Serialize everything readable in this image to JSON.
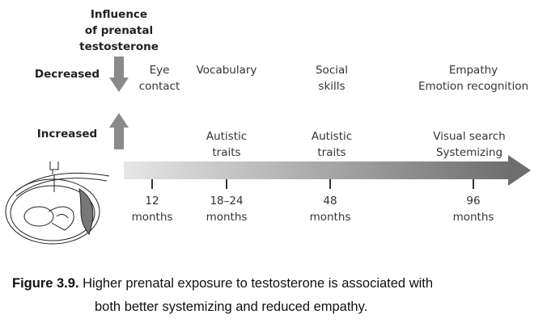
{
  "diagram": {
    "header": [
      "Influence",
      "of prenatal",
      "testosterone"
    ],
    "decreased_label": "Decreased",
    "increased_label": "Increased",
    "timeline": [
      {
        "age": [
          "12",
          "months"
        ],
        "decreased": [
          "Eye",
          "contact"
        ],
        "increased": []
      },
      {
        "age": [
          "18–24",
          "months"
        ],
        "decreased": [
          "Vocabulary"
        ],
        "increased": [
          "Autistic",
          "traits"
        ]
      },
      {
        "age": [
          "48",
          "months"
        ],
        "decreased": [
          "Social",
          "skills"
        ],
        "increased": [
          "Autistic",
          "traits"
        ]
      },
      {
        "age": [
          "96",
          "months"
        ],
        "decreased": [
          "Empathy",
          "Emotion recognition"
        ],
        "increased": [
          "Visual search",
          "Systemizing"
        ]
      }
    ],
    "colors": {
      "arrow_dark": "#6e6e6e",
      "arrow_light": "#e6e6e6",
      "vertical_arrow": "#8a8a8a"
    }
  },
  "caption": {
    "label": "Figure 3.9.",
    "text_line1": "Higher prenatal exposure to testosterone is associated with",
    "text_line2": "both better systemizing and reduced empathy."
  }
}
